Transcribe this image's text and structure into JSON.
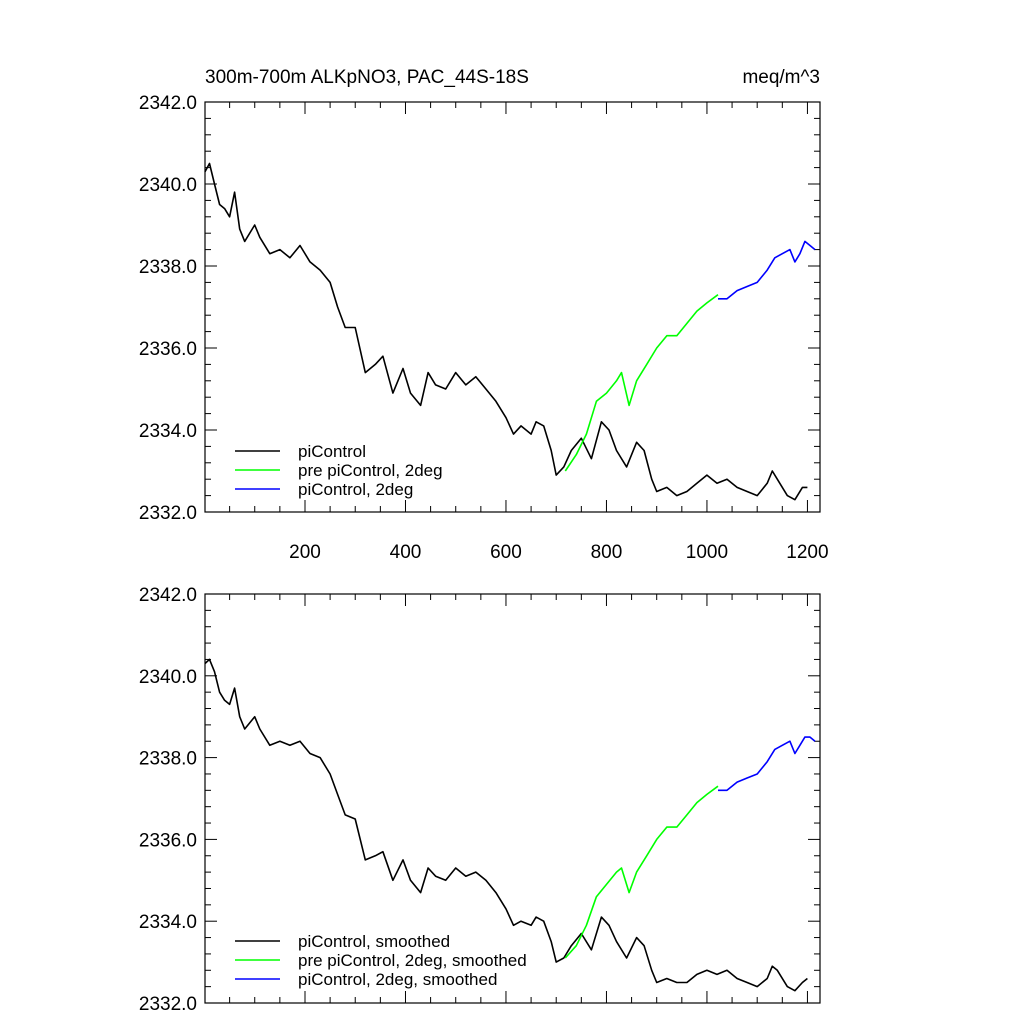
{
  "header": {
    "title": "300m-700m ALKpNO3, PAC_44S-18S",
    "units": "meq/m^3"
  },
  "chart_data": [
    {
      "type": "line",
      "xlim": [
        1,
        1225
      ],
      "ylim": [
        2332.0,
        2342.0
      ],
      "x_ticks": [
        200,
        400,
        600,
        800,
        1000,
        1200
      ],
      "x_tick_labels": [
        "200",
        "400",
        "600",
        "800",
        "1000",
        "1200"
      ],
      "y_ticks": [
        2332.0,
        2334.0,
        2336.0,
        2338.0,
        2340.0,
        2342.0
      ],
      "y_tick_labels": [
        "2332.0",
        "2334.0",
        "2336.0",
        "2338.0",
        "2340.0",
        "2342.0"
      ],
      "legend_position": "bottom-left",
      "series": [
        {
          "name": "piControl",
          "color": "#000000",
          "points": [
            [
              1,
              2340.3
            ],
            [
              10,
              2340.5
            ],
            [
              20,
              2340.0
            ],
            [
              30,
              2339.5
            ],
            [
              40,
              2339.4
            ],
            [
              50,
              2339.2
            ],
            [
              60,
              2339.8
            ],
            [
              70,
              2338.9
            ],
            [
              80,
              2338.6
            ],
            [
              100,
              2339.0
            ],
            [
              110,
              2338.7
            ],
            [
              130,
              2338.3
            ],
            [
              150,
              2338.4
            ],
            [
              170,
              2338.2
            ],
            [
              190,
              2338.5
            ],
            [
              210,
              2338.1
            ],
            [
              230,
              2337.9
            ],
            [
              250,
              2337.6
            ],
            [
              265,
              2337.0
            ],
            [
              280,
              2336.5
            ],
            [
              300,
              2336.5
            ],
            [
              320,
              2335.4
            ],
            [
              340,
              2335.6
            ],
            [
              355,
              2335.8
            ],
            [
              375,
              2334.9
            ],
            [
              395,
              2335.5
            ],
            [
              410,
              2334.9
            ],
            [
              430,
              2334.6
            ],
            [
              445,
              2335.4
            ],
            [
              460,
              2335.1
            ],
            [
              480,
              2335.0
            ],
            [
              500,
              2335.4
            ],
            [
              520,
              2335.1
            ],
            [
              540,
              2335.3
            ],
            [
              560,
              2335.0
            ],
            [
              580,
              2334.7
            ],
            [
              600,
              2334.3
            ],
            [
              615,
              2333.9
            ],
            [
              630,
              2334.1
            ],
            [
              650,
              2333.9
            ],
            [
              660,
              2334.2
            ],
            [
              675,
              2334.1
            ],
            [
              690,
              2333.5
            ],
            [
              700,
              2332.9
            ],
            [
              715,
              2333.1
            ],
            [
              730,
              2333.5
            ],
            [
              750,
              2333.8
            ],
            [
              770,
              2333.3
            ],
            [
              790,
              2334.2
            ],
            [
              805,
              2334.0
            ],
            [
              820,
              2333.5
            ],
            [
              840,
              2333.1
            ],
            [
              860,
              2333.7
            ],
            [
              875,
              2333.5
            ],
            [
              890,
              2332.8
            ],
            [
              900,
              2332.5
            ],
            [
              920,
              2332.6
            ],
            [
              940,
              2332.4
            ],
            [
              960,
              2332.5
            ],
            [
              980,
              2332.7
            ],
            [
              1000,
              2332.9
            ],
            [
              1020,
              2332.7
            ],
            [
              1040,
              2332.8
            ],
            [
              1060,
              2332.6
            ],
            [
              1080,
              2332.5
            ],
            [
              1100,
              2332.4
            ],
            [
              1120,
              2332.7
            ],
            [
              1130,
              2333.0
            ],
            [
              1140,
              2332.8
            ],
            [
              1160,
              2332.4
            ],
            [
              1175,
              2332.3
            ],
            [
              1190,
              2332.6
            ],
            [
              1200,
              2332.6
            ]
          ]
        },
        {
          "name": "pre piControl, 2deg",
          "color": "#00ff00",
          "points": [
            [
              718,
              2333.0
            ],
            [
              740,
              2333.4
            ],
            [
              760,
              2333.9
            ],
            [
              780,
              2334.7
            ],
            [
              800,
              2334.9
            ],
            [
              820,
              2335.2
            ],
            [
              830,
              2335.4
            ],
            [
              845,
              2334.6
            ],
            [
              860,
              2335.2
            ],
            [
              880,
              2335.6
            ],
            [
              900,
              2336.0
            ],
            [
              920,
              2336.3
            ],
            [
              940,
              2336.3
            ],
            [
              960,
              2336.6
            ],
            [
              980,
              2336.9
            ],
            [
              1000,
              2337.1
            ],
            [
              1022,
              2337.3
            ]
          ]
        },
        {
          "name": "piControl, 2deg",
          "color": "#0000ff",
          "points": [
            [
              1022,
              2337.2
            ],
            [
              1040,
              2337.2
            ],
            [
              1060,
              2337.4
            ],
            [
              1080,
              2337.5
            ],
            [
              1100,
              2337.6
            ],
            [
              1120,
              2337.9
            ],
            [
              1135,
              2338.2
            ],
            [
              1150,
              2338.3
            ],
            [
              1165,
              2338.4
            ],
            [
              1175,
              2338.1
            ],
            [
              1185,
              2338.3
            ],
            [
              1195,
              2338.6
            ],
            [
              1205,
              2338.5
            ],
            [
              1215,
              2338.4
            ]
          ]
        }
      ]
    },
    {
      "type": "line",
      "xlim": [
        1,
        1225
      ],
      "ylim": [
        2332.0,
        2342.0
      ],
      "x_ticks": [
        200,
        400,
        600,
        800,
        1000,
        1200
      ],
      "y_ticks": [
        2332.0,
        2334.0,
        2336.0,
        2338.0,
        2340.0,
        2342.0
      ],
      "y_tick_labels": [
        "2332.0",
        "2334.0",
        "2336.0",
        "2338.0",
        "2340.0",
        "2342.0"
      ],
      "legend_position": "bottom-left",
      "series": [
        {
          "name": "piControl, smoothed",
          "color": "#000000",
          "points": [
            [
              1,
              2340.3
            ],
            [
              10,
              2340.4
            ],
            [
              20,
              2340.1
            ],
            [
              30,
              2339.6
            ],
            [
              40,
              2339.4
            ],
            [
              50,
              2339.3
            ],
            [
              60,
              2339.7
            ],
            [
              70,
              2339.0
            ],
            [
              80,
              2338.7
            ],
            [
              100,
              2339.0
            ],
            [
              110,
              2338.7
            ],
            [
              130,
              2338.3
            ],
            [
              150,
              2338.4
            ],
            [
              170,
              2338.3
            ],
            [
              190,
              2338.4
            ],
            [
              210,
              2338.1
            ],
            [
              230,
              2338.0
            ],
            [
              250,
              2337.6
            ],
            [
              265,
              2337.1
            ],
            [
              280,
              2336.6
            ],
            [
              300,
              2336.5
            ],
            [
              320,
              2335.5
            ],
            [
              340,
              2335.6
            ],
            [
              355,
              2335.7
            ],
            [
              375,
              2335.0
            ],
            [
              395,
              2335.5
            ],
            [
              410,
              2335.0
            ],
            [
              430,
              2334.7
            ],
            [
              445,
              2335.3
            ],
            [
              460,
              2335.1
            ],
            [
              480,
              2335.0
            ],
            [
              500,
              2335.3
            ],
            [
              520,
              2335.1
            ],
            [
              540,
              2335.2
            ],
            [
              560,
              2335.0
            ],
            [
              580,
              2334.7
            ],
            [
              600,
              2334.3
            ],
            [
              615,
              2333.9
            ],
            [
              630,
              2334.0
            ],
            [
              650,
              2333.9
            ],
            [
              660,
              2334.1
            ],
            [
              675,
              2334.0
            ],
            [
              690,
              2333.5
            ],
            [
              700,
              2333.0
            ],
            [
              715,
              2333.1
            ],
            [
              730,
              2333.4
            ],
            [
              750,
              2333.7
            ],
            [
              770,
              2333.3
            ],
            [
              790,
              2334.1
            ],
            [
              805,
              2333.9
            ],
            [
              820,
              2333.5
            ],
            [
              840,
              2333.1
            ],
            [
              860,
              2333.6
            ],
            [
              875,
              2333.4
            ],
            [
              890,
              2332.8
            ],
            [
              900,
              2332.5
            ],
            [
              920,
              2332.6
            ],
            [
              940,
              2332.5
            ],
            [
              960,
              2332.5
            ],
            [
              980,
              2332.7
            ],
            [
              1000,
              2332.8
            ],
            [
              1020,
              2332.7
            ],
            [
              1040,
              2332.8
            ],
            [
              1060,
              2332.6
            ],
            [
              1080,
              2332.5
            ],
            [
              1100,
              2332.4
            ],
            [
              1120,
              2332.6
            ],
            [
              1130,
              2332.9
            ],
            [
              1140,
              2332.8
            ],
            [
              1160,
              2332.4
            ],
            [
              1175,
              2332.3
            ],
            [
              1190,
              2332.5
            ],
            [
              1200,
              2332.6
            ]
          ]
        },
        {
          "name": "pre piControl, 2deg, smoothed",
          "color": "#00ff00",
          "points": [
            [
              718,
              2333.1
            ],
            [
              740,
              2333.4
            ],
            [
              760,
              2333.9
            ],
            [
              780,
              2334.6
            ],
            [
              800,
              2334.9
            ],
            [
              820,
              2335.2
            ],
            [
              830,
              2335.3
            ],
            [
              845,
              2334.7
            ],
            [
              860,
              2335.2
            ],
            [
              880,
              2335.6
            ],
            [
              900,
              2336.0
            ],
            [
              920,
              2336.3
            ],
            [
              940,
              2336.3
            ],
            [
              960,
              2336.6
            ],
            [
              980,
              2336.9
            ],
            [
              1000,
              2337.1
            ],
            [
              1022,
              2337.3
            ]
          ]
        },
        {
          "name": "piControl, 2deg, smoothed",
          "color": "#0000ff",
          "points": [
            [
              1022,
              2337.2
            ],
            [
              1040,
              2337.2
            ],
            [
              1060,
              2337.4
            ],
            [
              1080,
              2337.5
            ],
            [
              1100,
              2337.6
            ],
            [
              1120,
              2337.9
            ],
            [
              1135,
              2338.2
            ],
            [
              1150,
              2338.3
            ],
            [
              1165,
              2338.4
            ],
            [
              1175,
              2338.1
            ],
            [
              1185,
              2338.3
            ],
            [
              1195,
              2338.5
            ],
            [
              1205,
              2338.5
            ],
            [
              1215,
              2338.4
            ]
          ]
        }
      ]
    }
  ]
}
